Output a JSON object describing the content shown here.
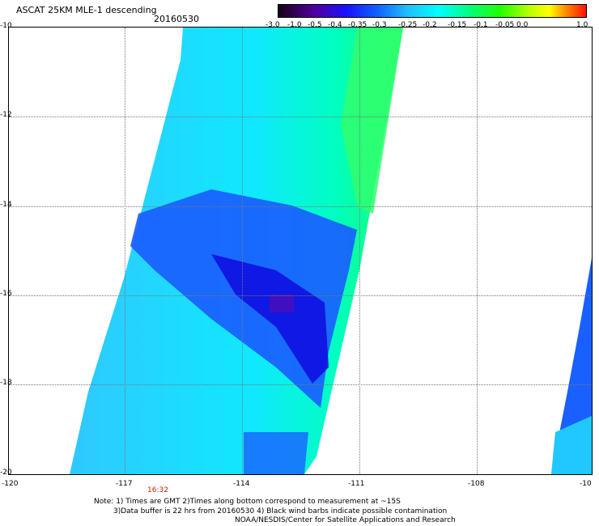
{
  "header": {
    "title": "ASCAT 25KM MLE-1 descending",
    "date": "20160530"
  },
  "colorbar": {
    "ticks": [
      "-3.0",
      "-1.0",
      "-0.5",
      "-0.4",
      "-0.35",
      "-0.3",
      "-0.25",
      "-0.2",
      "-0.15",
      "-0.1",
      "-0.05",
      "0.0",
      "1.0"
    ],
    "colors": [
      "#200020",
      "#5a0090",
      "#2a00d0",
      "#0020ff",
      "#1060ff",
      "#20b0ff",
      "#00ffff",
      "#00ffa0",
      "#00ff20",
      "#80ff00",
      "#ffff00",
      "#ff9000",
      "#ff2000"
    ]
  },
  "map": {
    "lat_labels": [
      "-10",
      "-12",
      "-14",
      "-16",
      "-18",
      "-20"
    ],
    "lon_labels": [
      "-120",
      "-117",
      "-114",
      "-111",
      "-108",
      "-10"
    ],
    "time_label": "16:32"
  },
  "notes": {
    "line1": "Note: 1) Times are GMT 2)Times along bottom correspond to measurement at ~15S",
    "line2": "3)Data buffer is 22 hrs from 20160530 4) Black wind barbs indicate possible contamination",
    "line3": "NOAA/NESDIS/Center for Satellite Applications and Research"
  }
}
